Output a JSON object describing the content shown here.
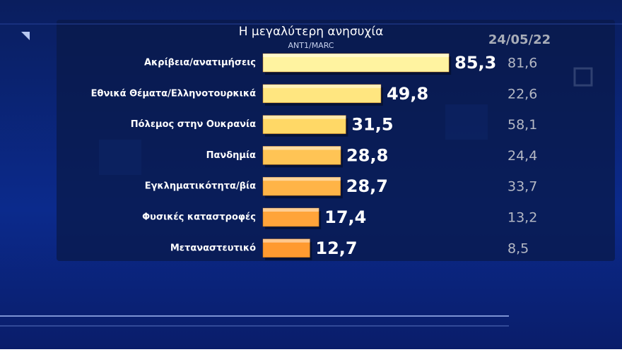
{
  "chart_data": {
    "type": "bar",
    "orientation": "horizontal",
    "title": "Η μεγαλύτερη ανησυχία",
    "subtitle": "ANT1/MARC",
    "categories": [
      "Ακρίβεια/ανατιμήσεις",
      "Εθνικά Θέματα/Ελληνοτουρκικά",
      "Πόλεμος στην Ουκρανία",
      "Πανδημία",
      "Εγκληματικότητα/βία",
      "Φυσικές καταστροφές",
      "Μεταναστευτικό"
    ],
    "series": [
      {
        "values": [
          85.3,
          49.8,
          31.5,
          28.8,
          28.7,
          17.4,
          12.7
        ],
        "value_labels": [
          "85,3",
          "49,8",
          "31,5",
          "28,8",
          "28,7",
          "17,4",
          "12,7"
        ],
        "colors": [
          "#fff3a0",
          "#ffe680",
          "#ffd866",
          "#ffc455",
          "#ffb447",
          "#ffa43a",
          "#ff9a30"
        ]
      },
      {
        "name": "24/05/22",
        "values": [
          81.6,
          22.6,
          58.1,
          24.4,
          33.7,
          13.2,
          8.5
        ],
        "value_labels": [
          "81,6",
          "22,6",
          "58,1",
          "24,4",
          "33,7",
          "13,2",
          "8,5"
        ]
      }
    ]
  }
}
